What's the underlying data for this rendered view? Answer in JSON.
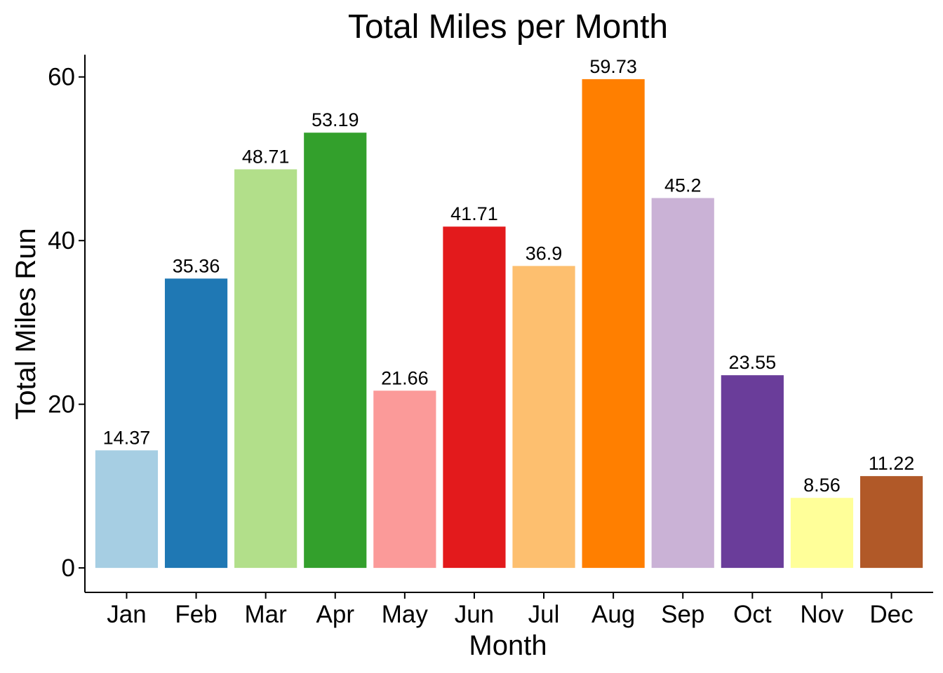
{
  "chart_data": {
    "type": "bar",
    "title": "Total Miles per Month",
    "xlabel": "Month",
    "ylabel": "Total Miles Run",
    "categories": [
      "Jan",
      "Feb",
      "Mar",
      "Apr",
      "May",
      "Jun",
      "Jul",
      "Aug",
      "Sep",
      "Oct",
      "Nov",
      "Dec"
    ],
    "values": [
      14.37,
      35.36,
      48.71,
      53.19,
      21.66,
      41.71,
      36.9,
      59.73,
      45.2,
      23.55,
      8.56,
      11.22
    ],
    "value_labels": [
      "14.37",
      "35.36",
      "48.71",
      "53.19",
      "21.66",
      "41.71",
      "36.9",
      "59.73",
      "45.2",
      "23.55",
      "8.56",
      "11.22"
    ],
    "colors": [
      "#A6CEE3",
      "#1F78B4",
      "#B2DF8A",
      "#33A02C",
      "#FB9A99",
      "#E31A1C",
      "#FDBF6F",
      "#FF7F00",
      "#CAB2D6",
      "#6A3D9A",
      "#FFFF99",
      "#B15928"
    ],
    "yticks": [
      0,
      20,
      40,
      60
    ],
    "ytick_labels": [
      "0",
      "20",
      "40",
      "60"
    ],
    "ylim": [
      -2.99,
      62.72
    ],
    "grid": false,
    "legend": "none"
  }
}
